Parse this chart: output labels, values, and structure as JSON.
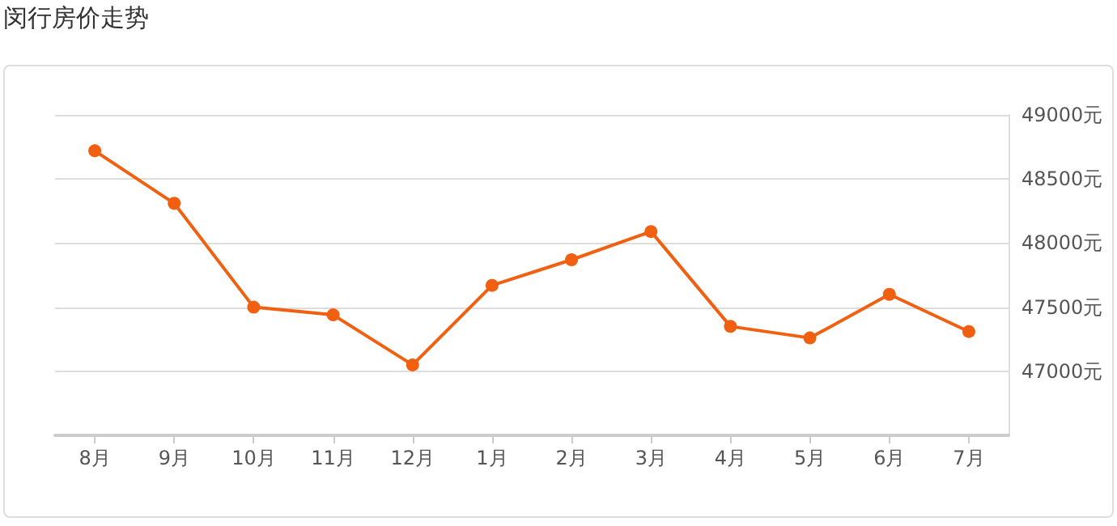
{
  "chart_data": {
    "type": "line",
    "title": "闵行房价走势",
    "categories": [
      "8月",
      "9月",
      "10月",
      "11月",
      "12月",
      "1月",
      "2月",
      "3月",
      "4月",
      "5月",
      "6月",
      "7月"
    ],
    "series": [
      {
        "color": "#f06010",
        "values": [
          48720,
          48310,
          47500,
          47440,
          47050,
          47670,
          47870,
          48090,
          47350,
          47260,
          47600,
          47310
        ]
      }
    ],
    "ylim": [
      46500,
      49000
    ],
    "yticks": [
      {
        "value": 46500,
        "label": null
      },
      {
        "value": 47000,
        "label": "47000元"
      },
      {
        "value": 47500,
        "label": "47500元"
      },
      {
        "value": 48000,
        "label": "48000元"
      },
      {
        "value": 48500,
        "label": "48500元"
      },
      {
        "value": 49000,
        "label": "49000元"
      }
    ],
    "grid": "y",
    "marker": "circle",
    "line_style": "solid"
  }
}
